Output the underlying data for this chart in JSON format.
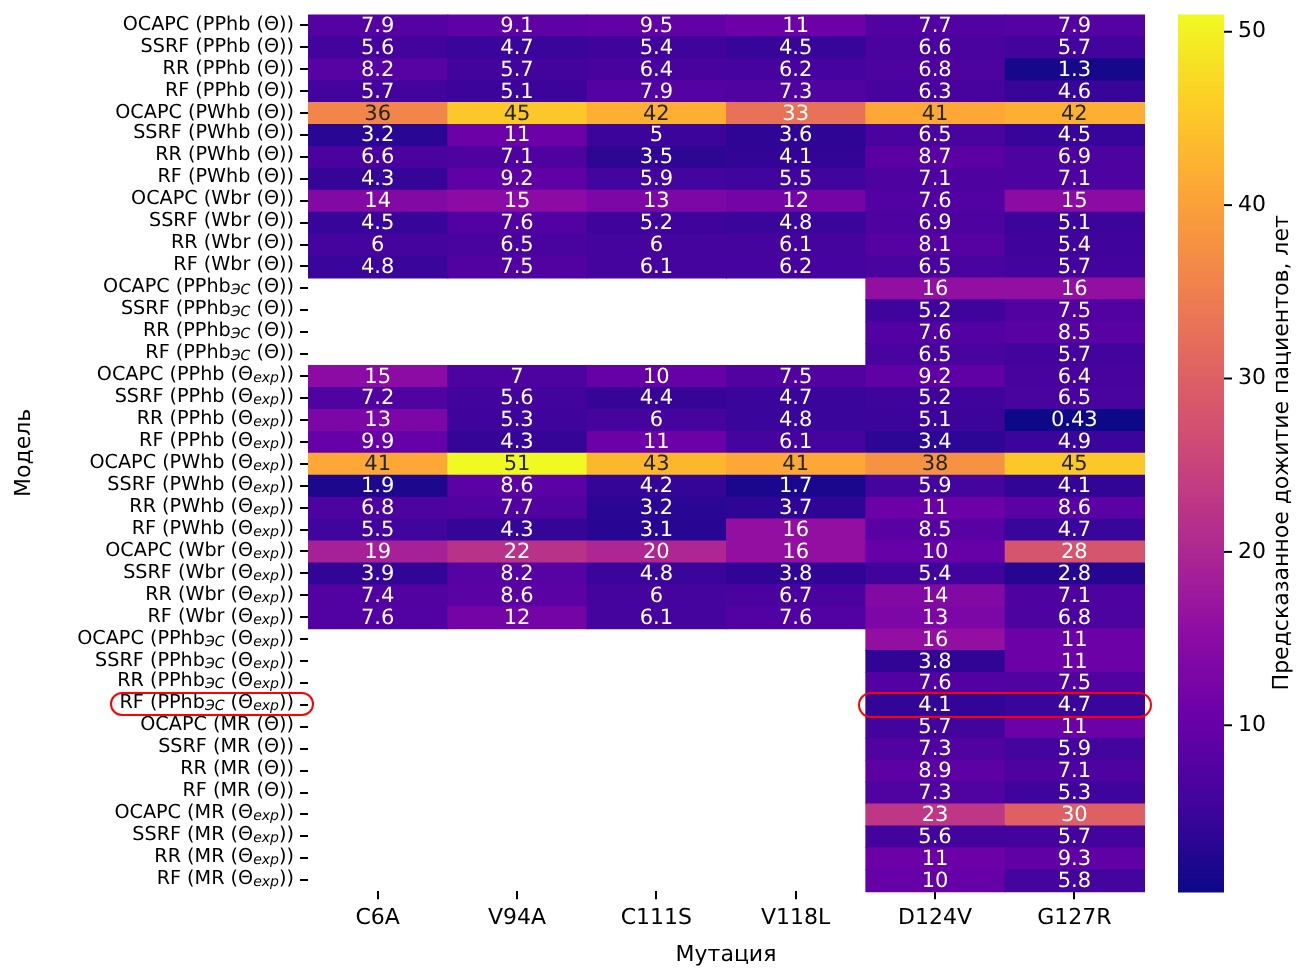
{
  "chart_data": {
    "type": "heatmap",
    "xlabel": "Мутация",
    "ylabel": "Модель",
    "clabel": "Предсказанное дожитие пациентов, лет",
    "data_labels": true,
    "categories": [
      "C6A",
      "V94A",
      "C111S",
      "V118L",
      "D124V",
      "G127R"
    ],
    "y_categories": [
      "OCAPC (PPhb (Θ))",
      "SSRF (PPhb (Θ))",
      "RR (PPhb (Θ))",
      "RF (PPhb (Θ))",
      "OCAPC (PWhb (Θ))",
      "SSRF (PWhb (Θ))",
      "RR (PWhb (Θ))",
      "RF (PWhb (Θ))",
      "OCAPC (Wbr (Θ))",
      "SSRF (Wbr (Θ))",
      "RR (Wbr (Θ))",
      "RF (Wbr (Θ))",
      "OCAPC (PPhb$_{ЭС}$ (Θ))",
      "SSRF (PPhb$_{ЭС}$ (Θ))",
      "RR (PPhb$_{ЭС}$ (Θ))",
      "RF (PPhb$_{ЭС}$ (Θ))",
      "OCAPC (PPhb (Θ$_{exp}$))",
      "SSRF (PPhb (Θ$_{exp}$))",
      "RR (PPhb (Θ$_{exp}$))",
      "RF (PPhb (Θ$_{exp}$))",
      "OCAPC (PWhb (Θ$_{exp}$))",
      "SSRF (PWhb (Θ$_{exp}$))",
      "RR (PWhb (Θ$_{exp}$))",
      "RF (PWhb (Θ$_{exp}$))",
      "OCAPC (Wbr (Θ$_{exp}$))",
      "SSRF (Wbr (Θ$_{exp}$))",
      "RR (Wbr (Θ$_{exp}$))",
      "RF (Wbr (Θ$_{exp}$))",
      "OCAPC (PPhb$_{ЭС}$ (Θ$_{exp}$))",
      "SSRF (PPhb$_{ЭС}$ (Θ$_{exp}$))",
      "RR (PPhb$_{ЭС}$ (Θ$_{exp}$))",
      "RF (PPhb$_{ЭС}$ (Θ$_{exp}$))",
      "OCAPC (MR (Θ))",
      "SSRF (MR (Θ))",
      "RR (MR (Θ))",
      "RF (MR (Θ))",
      "OCAPC (MR (Θ$_{exp}$))",
      "SSRF (MR (Θ$_{exp}$))",
      "RR (MR (Θ$_{exp}$))",
      "RF (MR (Θ$_{exp}$))"
    ],
    "cells": [
      [
        7.9,
        9.1,
        9.5,
        11,
        7.7,
        7.9
      ],
      [
        5.6,
        4.7,
        5.4,
        4.5,
        6.6,
        5.7
      ],
      [
        8.2,
        5.7,
        6.4,
        6.2,
        6.8,
        1.3
      ],
      [
        5.7,
        5.1,
        7.9,
        7.3,
        6.3,
        4.6
      ],
      [
        36,
        45,
        42,
        33,
        41,
        42
      ],
      [
        3.2,
        11,
        5,
        3.6,
        6.5,
        4.5
      ],
      [
        6.6,
        7.1,
        3.5,
        4.1,
        8.7,
        6.9
      ],
      [
        4.3,
        9.2,
        5.9,
        5.5,
        7.1,
        7.1
      ],
      [
        14,
        15,
        13,
        12,
        7.6,
        15
      ],
      [
        4.5,
        7.6,
        5.2,
        4.8,
        6.9,
        5.1
      ],
      [
        6,
        6.5,
        6,
        6.1,
        8.1,
        5.4
      ],
      [
        4.8,
        7.5,
        6.1,
        6.2,
        6.5,
        5.7
      ],
      [
        null,
        null,
        null,
        null,
        16,
        16
      ],
      [
        null,
        null,
        null,
        null,
        5.2,
        7.5
      ],
      [
        null,
        null,
        null,
        null,
        7.6,
        8.5
      ],
      [
        null,
        null,
        null,
        null,
        6.5,
        5.7
      ],
      [
        15,
        7,
        10,
        7.5,
        9.2,
        6.4
      ],
      [
        7.2,
        5.6,
        4.4,
        4.7,
        5.2,
        6.5
      ],
      [
        13,
        5.3,
        6,
        4.8,
        5.1,
        0.43
      ],
      [
        9.9,
        4.3,
        11,
        6.1,
        3.4,
        4.9
      ],
      [
        41,
        51,
        43,
        41,
        38,
        45
      ],
      [
        1.9,
        8.6,
        4.2,
        1.7,
        5.9,
        4.1
      ],
      [
        6.8,
        7.7,
        3.2,
        3.7,
        11,
        8.6
      ],
      [
        5.5,
        4.3,
        3.1,
        16,
        8.5,
        4.7
      ],
      [
        19,
        22,
        20,
        16,
        10,
        28
      ],
      [
        3.9,
        8.2,
        4.8,
        3.8,
        5.4,
        2.8
      ],
      [
        7.4,
        8.6,
        6,
        6.7,
        14,
        7.1
      ],
      [
        7.6,
        12,
        6.1,
        7.6,
        13,
        6.8
      ],
      [
        null,
        null,
        null,
        null,
        16,
        11
      ],
      [
        null,
        null,
        null,
        null,
        3.8,
        11
      ],
      [
        null,
        null,
        null,
        null,
        7.6,
        7.5
      ],
      [
        null,
        null,
        null,
        null,
        4.1,
        4.7
      ],
      [
        null,
        null,
        null,
        null,
        5.7,
        11
      ],
      [
        null,
        null,
        null,
        null,
        7.3,
        5.9
      ],
      [
        null,
        null,
        null,
        null,
        8.9,
        7.1
      ],
      [
        null,
        null,
        null,
        null,
        7.3,
        5.3
      ],
      [
        null,
        null,
        null,
        null,
        23,
        30
      ],
      [
        null,
        null,
        null,
        null,
        5.6,
        5.7
      ],
      [
        null,
        null,
        null,
        null,
        11,
        9.3
      ],
      [
        null,
        null,
        null,
        null,
        10,
        5.8
      ]
    ],
    "clim": [
      0.43,
      51
    ],
    "cticks": [
      10,
      20,
      30,
      40,
      50
    ]
  }
}
